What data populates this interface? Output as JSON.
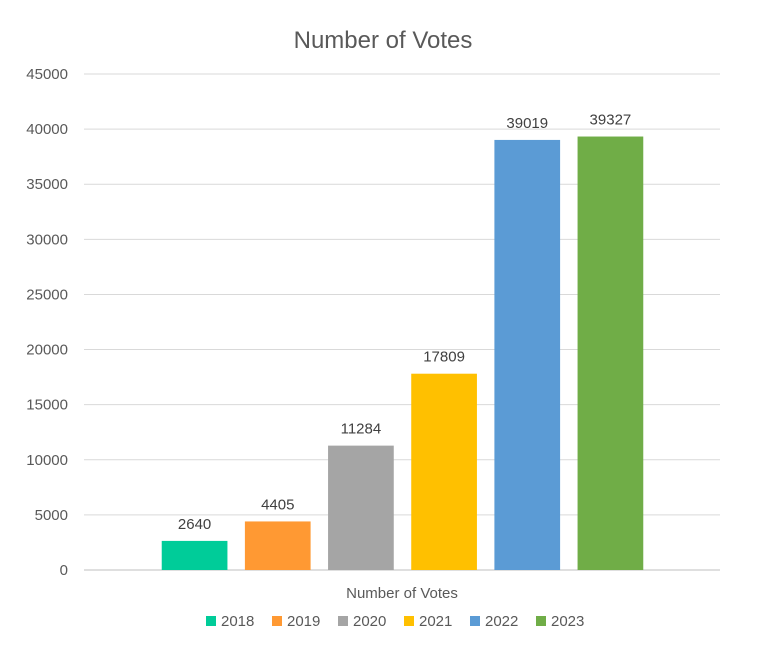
{
  "chart_data": {
    "type": "bar",
    "title": "Number of Votes",
    "xlabel": "Number of Votes",
    "ylabel": "",
    "categories": [
      "Number of Votes"
    ],
    "series": [
      {
        "name": "2018",
        "values": [
          2640
        ],
        "color": "#00CC99"
      },
      {
        "name": "2019",
        "values": [
          4405
        ],
        "color": "#FF9933"
      },
      {
        "name": "2020",
        "values": [
          11284
        ],
        "color": "#A5A5A5"
      },
      {
        "name": "2021",
        "values": [
          17809
        ],
        "color": "#FFC000"
      },
      {
        "name": "2022",
        "values": [
          39019
        ],
        "color": "#5B9BD5"
      },
      {
        "name": "2023",
        "values": [
          39327
        ],
        "color": "#70AD47"
      }
    ],
    "ylim": [
      0,
      45000
    ],
    "yticks": [
      "0",
      "5000",
      "10000",
      "15000",
      "20000",
      "25000",
      "30000",
      "35000",
      "40000",
      "45000"
    ],
    "grid": true,
    "legend_position": "bottom",
    "data_labels": true
  }
}
